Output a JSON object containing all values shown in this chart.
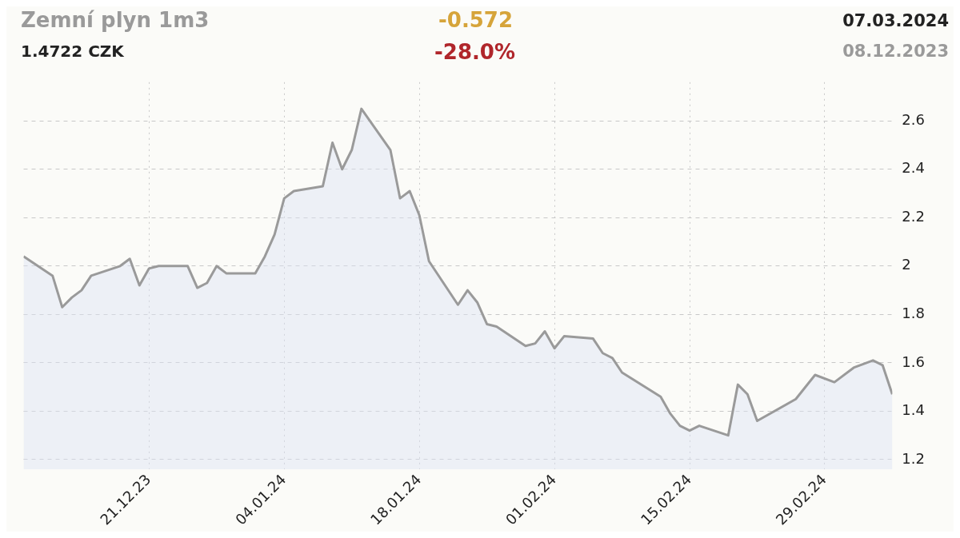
{
  "chart_data": {
    "type": "area",
    "title": "Zemní plyn 1m3",
    "annotations": [
      "1.4722 CZK",
      "-0.572",
      "-28.0%",
      "07.03.2024",
      "08.12.2023"
    ],
    "x": [
      "2023-12-08",
      "2023-12-11",
      "2023-12-12",
      "2023-12-13",
      "2023-12-14",
      "2023-12-15",
      "2023-12-18",
      "2023-12-19",
      "2023-12-20",
      "2023-12-21",
      "2023-12-22",
      "2023-12-25",
      "2023-12-26",
      "2023-12-27",
      "2023-12-28",
      "2023-12-29",
      "2024-01-01",
      "2024-01-02",
      "2024-01-03",
      "2024-01-04",
      "2024-01-05",
      "2024-01-08",
      "2024-01-09",
      "2024-01-10",
      "2024-01-11",
      "2024-01-12",
      "2024-01-15",
      "2024-01-16",
      "2024-01-17",
      "2024-01-18",
      "2024-01-19",
      "2024-01-22",
      "2024-01-23",
      "2024-01-24",
      "2024-01-25",
      "2024-01-26",
      "2024-01-29",
      "2024-01-30",
      "2024-01-31",
      "2024-02-01",
      "2024-02-02",
      "2024-02-05",
      "2024-02-06",
      "2024-02-07",
      "2024-02-08",
      "2024-02-12",
      "2024-02-13",
      "2024-02-14",
      "2024-02-15",
      "2024-02-16",
      "2024-02-19",
      "2024-02-20",
      "2024-02-21",
      "2024-02-22",
      "2024-02-26",
      "2024-02-28",
      "2024-03-01",
      "2024-03-03",
      "2024-03-05",
      "2024-03-06",
      "2024-03-07"
    ],
    "series": [
      {
        "color": "#9a9a9a",
        "values": [
          2.04,
          1.96,
          1.83,
          1.87,
          1.9,
          1.96,
          2.0,
          2.03,
          1.92,
          1.99,
          2.0,
          2.0,
          1.91,
          1.93,
          2.0,
          1.97,
          1.97,
          2.04,
          2.13,
          2.28,
          2.31,
          2.33,
          2.51,
          2.4,
          2.48,
          2.65,
          2.48,
          2.28,
          2.31,
          2.21,
          2.02,
          1.84,
          1.9,
          1.85,
          1.76,
          1.75,
          1.67,
          1.68,
          1.73,
          1.66,
          1.71,
          1.7,
          1.64,
          1.62,
          1.56,
          1.46,
          1.39,
          1.34,
          1.32,
          1.34,
          1.3,
          1.51,
          1.47,
          1.36,
          1.45,
          1.55,
          1.52,
          1.58,
          1.61,
          1.59,
          1.47
        ]
      }
    ],
    "xlim": [
      "2023-12-08",
      "2024-03-07"
    ],
    "xticks": [
      {
        "value": "2023-12-21",
        "label": "21.12.23"
      },
      {
        "value": "2024-01-04",
        "label": "04.01.24"
      },
      {
        "value": "2024-01-18",
        "label": "18.01.24"
      },
      {
        "value": "2024-02-01",
        "label": "01.02.24"
      },
      {
        "value": "2024-02-15",
        "label": "15.02.24"
      },
      {
        "value": "2024-02-29",
        "label": "29.02.24"
      }
    ],
    "ylim": [
      1.16,
      2.76
    ],
    "yticks": [
      1.2,
      1.4,
      1.6,
      1.8,
      2,
      2.2,
      2.4,
      2.6
    ],
    "grid": true,
    "line_style": "solid",
    "marker": "none"
  }
}
